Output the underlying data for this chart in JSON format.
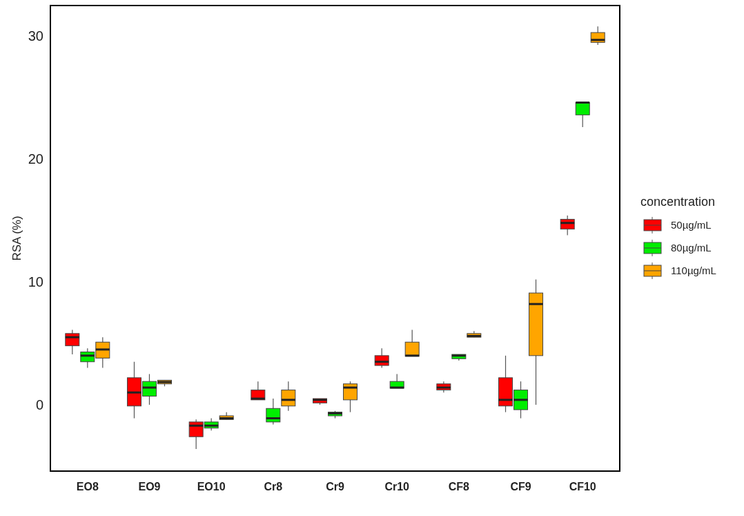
{
  "chart_data": {
    "type": "box",
    "ylabel": "RSA (%)",
    "legend_title": "concentration",
    "legend": "right",
    "grid": false,
    "categories": [
      "EO8",
      "EO9",
      "EO10",
      "Cr8",
      "Cr9",
      "Cr10",
      "CF8",
      "CF9",
      "CF10"
    ],
    "ylim": [
      -5.4,
      32.5
    ],
    "yticks": [
      0,
      10,
      20,
      30
    ],
    "series": [
      {
        "name": "50µg/mL",
        "color": "#ff0000",
        "boxes": [
          {
            "low": 4.1,
            "q1": 4.8,
            "median": 5.5,
            "q3": 5.8,
            "high": 6.1
          },
          {
            "low": -1.1,
            "q1": -0.1,
            "median": 1.0,
            "q3": 2.2,
            "high": 3.5
          },
          {
            "low": -3.6,
            "q1": -2.6,
            "median": -1.7,
            "q3": -1.4,
            "high": -1.2
          },
          {
            "low": 0.4,
            "q1": 0.4,
            "median": 0.5,
            "q3": 1.2,
            "high": 1.9
          },
          {
            "low": 0.0,
            "q1": 0.15,
            "median": 0.4,
            "q3": 0.5,
            "high": 0.5
          },
          {
            "low": 3.0,
            "q1": 3.2,
            "median": 3.5,
            "q3": 4.0,
            "high": 4.6
          },
          {
            "low": 1.0,
            "q1": 1.2,
            "median": 1.4,
            "q3": 1.7,
            "high": 1.9
          },
          {
            "low": -0.6,
            "q1": -0.1,
            "median": 0.4,
            "q3": 2.2,
            "high": 4.0
          },
          {
            "low": 13.8,
            "q1": 14.3,
            "median": 14.8,
            "q3": 15.1,
            "high": 15.4
          }
        ]
      },
      {
        "name": "80µg/mL",
        "color": "#00ee00",
        "boxes": [
          {
            "low": 3.0,
            "q1": 3.5,
            "median": 4.0,
            "q3": 4.3,
            "high": 4.6
          },
          {
            "low": 0.0,
            "q1": 0.7,
            "median": 1.4,
            "q3": 1.9,
            "high": 2.5
          },
          {
            "low": -2.1,
            "q1": -1.9,
            "median": -1.7,
            "q3": -1.4,
            "high": -1.1
          },
          {
            "low": -1.6,
            "q1": -1.4,
            "median": -1.1,
            "q3": -0.3,
            "high": 0.5
          },
          {
            "low": -1.1,
            "q1": -0.9,
            "median": -0.7,
            "q3": -0.6,
            "high": -0.5
          },
          {
            "low": 1.35,
            "q1": 1.35,
            "median": 1.4,
            "q3": 1.9,
            "high": 2.5
          },
          {
            "low": 3.6,
            "q1": 3.75,
            "median": 4.0,
            "q3": 4.1,
            "high": 4.1
          },
          {
            "low": -1.1,
            "q1": -0.4,
            "median": 0.4,
            "q3": 1.2,
            "high": 1.9
          },
          {
            "low": 22.6,
            "q1": 23.6,
            "median": 24.6,
            "q3": 24.6,
            "high": 24.6
          }
        ]
      },
      {
        "name": "110µg/mL",
        "color": "#ffa500",
        "boxes": [
          {
            "low": 3.0,
            "q1": 3.8,
            "median": 4.5,
            "q3": 5.1,
            "high": 5.5
          },
          {
            "low": 1.5,
            "q1": 1.7,
            "median": 1.85,
            "q3": 2.0,
            "high": 2.0
          },
          {
            "low": -1.2,
            "q1": -1.2,
            "median": -1.1,
            "q3": -0.9,
            "high": -0.6
          },
          {
            "low": -0.5,
            "q1": -0.1,
            "median": 0.4,
            "q3": 1.2,
            "high": 1.9
          },
          {
            "low": -0.6,
            "q1": 0.4,
            "median": 1.4,
            "q3": 1.7,
            "high": 1.9
          },
          {
            "low": 3.95,
            "q1": 3.95,
            "median": 4.0,
            "q3": 5.1,
            "high": 6.1
          },
          {
            "low": 5.5,
            "q1": 5.5,
            "median": 5.6,
            "q3": 5.8,
            "high": 6.0
          },
          {
            "low": 0.0,
            "q1": 4.0,
            "median": 8.2,
            "q3": 9.1,
            "high": 10.2
          },
          {
            "low": 29.3,
            "q1": 29.5,
            "median": 29.7,
            "q3": 30.3,
            "high": 30.8
          }
        ]
      }
    ]
  }
}
